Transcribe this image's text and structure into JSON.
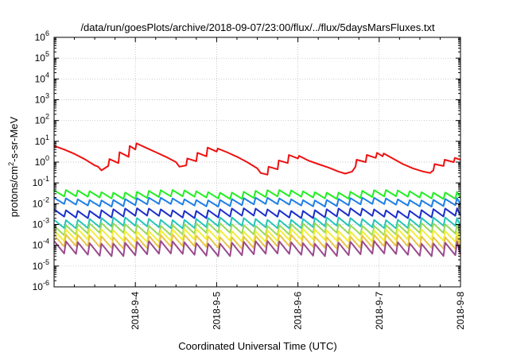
{
  "chart_data": {
    "type": "line",
    "title": "/data/run/goesPlots/archive/2018-09-07/23:00/flux/../flux/5daysMarsFluxes.txt",
    "xlabel": "Coordinated Universal Time (UTC)",
    "ylabel": {
      "base": "protons/cm",
      "sup": "2",
      "rest": "-s-sr-MeV"
    },
    "yscale": "log",
    "xlim": [
      "2018-09-03T00:00",
      "2018-09-08T00:00"
    ],
    "ylim": [
      1e-06,
      1000000.0
    ],
    "grid": true,
    "x_ticks": [
      "2018-9-4",
      "2018-9-5",
      "2018-9-6",
      "2018-9-7",
      "2018-9-8"
    ],
    "y_ticks": [
      {
        "base": "10",
        "exp": "-6"
      },
      {
        "base": "10",
        "exp": "-5"
      },
      {
        "base": "10",
        "exp": "-4"
      },
      {
        "base": "10",
        "exp": "-3"
      },
      {
        "base": "10",
        "exp": "-2"
      },
      {
        "base": "10",
        "exp": "-1"
      },
      {
        "base": "10",
        "exp": "0"
      },
      {
        "base": "10",
        "exp": "1"
      },
      {
        "base": "10",
        "exp": "2"
      },
      {
        "base": "10",
        "exp": "3"
      },
      {
        "base": "10",
        "exp": "4"
      },
      {
        "base": "10",
        "exp": "5"
      },
      {
        "base": "10",
        "exp": "6"
      }
    ],
    "series": [
      {
        "color": "#ee1111",
        "x": [
          "2018-09-03T00:00",
          "2018-09-03T03:00",
          "2018-09-03T06:00",
          "2018-09-03T09:00",
          "2018-09-03T12:00",
          "2018-09-03T13:00",
          "2018-09-03T14:00",
          "2018-09-03T16:00",
          "2018-09-03T16:20",
          "2018-09-03T19:00",
          "2018-09-03T19:20",
          "2018-09-03T22:00",
          "2018-09-03T22:20",
          "2018-09-04T00:00",
          "2018-09-04T00:20",
          "2018-09-04T03:00",
          "2018-09-04T06:00",
          "2018-09-04T09:00",
          "2018-09-04T12:00",
          "2018-09-04T13:00",
          "2018-09-04T15:00",
          "2018-09-04T15:20",
          "2018-09-04T18:00",
          "2018-09-04T18:20",
          "2018-09-04T21:00",
          "2018-09-04T21:20",
          "2018-09-05T00:00",
          "2018-09-05T00:20",
          "2018-09-05T03:00",
          "2018-09-05T06:00",
          "2018-09-05T09:00",
          "2018-09-05T12:00",
          "2018-09-05T13:00",
          "2018-09-05T15:00",
          "2018-09-05T15:20",
          "2018-09-05T18:00",
          "2018-09-05T18:20",
          "2018-09-05T21:00",
          "2018-09-05T21:20",
          "2018-09-06T00:00",
          "2018-09-06T00:20",
          "2018-09-06T03:00",
          "2018-09-06T06:00",
          "2018-09-06T09:00",
          "2018-09-06T12:00",
          "2018-09-06T14:00",
          "2018-09-06T16:00",
          "2018-09-06T17:00",
          "2018-09-06T17:20",
          "2018-09-06T20:00",
          "2018-09-06T20:20",
          "2018-09-06T23:00",
          "2018-09-06T23:20",
          "2018-09-07T01:00",
          "2018-09-07T01:20",
          "2018-09-07T04:00",
          "2018-09-07T07:00",
          "2018-09-07T10:00",
          "2018-09-07T13:00",
          "2018-09-07T15:00",
          "2018-09-07T16:00",
          "2018-09-07T16:20",
          "2018-09-07T19:00",
          "2018-09-07T19:20",
          "2018-09-07T22:00",
          "2018-09-07T22:20",
          "2018-09-08T00:00"
        ],
        "y": [
          6,
          4,
          2.5,
          1.4,
          0.7,
          0.6,
          0.4,
          0.65,
          1.4,
          0.9,
          3.0,
          1.8,
          6.0,
          4.0,
          8.0,
          5,
          3,
          1.8,
          1.0,
          0.6,
          0.7,
          1.5,
          1.1,
          2.8,
          1.9,
          5.0,
          3.2,
          4.5,
          3,
          1.8,
          1.0,
          0.5,
          0.3,
          0.25,
          0.6,
          0.45,
          1.2,
          0.9,
          2.2,
          1.5,
          2.0,
          1.2,
          0.8,
          0.55,
          0.35,
          0.28,
          0.35,
          0.6,
          1.3,
          1.0,
          2.2,
          1.6,
          2.8,
          1.9,
          2.6,
          1.5,
          0.8,
          0.5,
          0.35,
          0.3,
          0.4,
          0.8,
          0.65,
          1.3,
          1.0,
          1.6,
          1.3
        ]
      },
      {
        "color": "#22ee22",
        "base": 0.028,
        "amplitude": 0.3
      },
      {
        "color": "#1e7fe6",
        "base": 0.012,
        "amplitude": 0.3
      },
      {
        "color": "#1b2fc9",
        "base": 0.0035,
        "amplitude": 0.35
      },
      {
        "color": "#26c6b8",
        "base": 0.0012,
        "amplitude": 0.4
      },
      {
        "color": "#9bd85a",
        "base": 0.0006,
        "amplitude": 0.45
      },
      {
        "color": "#f0ee3c",
        "base": 0.0003,
        "amplitude": 0.5
      },
      {
        "color": "#e8c548",
        "base": 0.00015,
        "amplitude": 0.55
      },
      {
        "color": "#9a4a8e",
        "base": 7e-05,
        "amplitude": 0.6
      }
    ],
    "sawtooth_period_hours": 3.5
  }
}
